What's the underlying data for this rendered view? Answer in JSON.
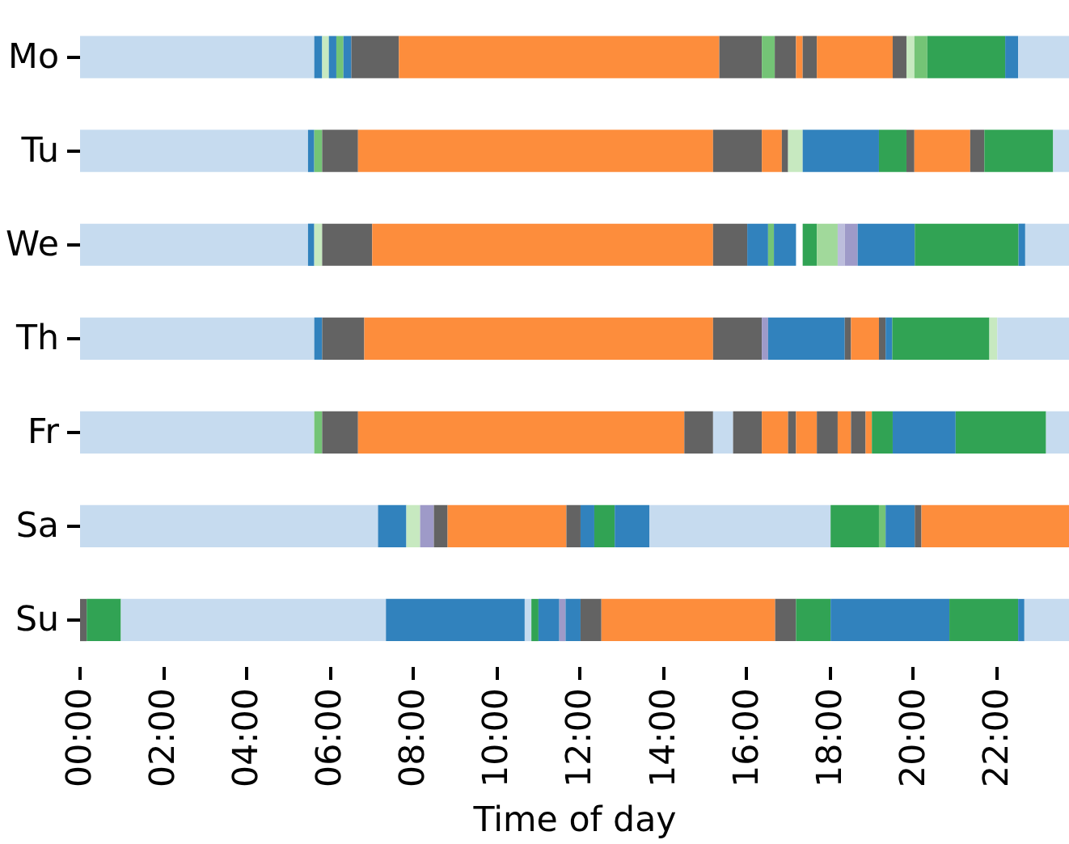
{
  "chart_data": {
    "type": "bar",
    "orientation": "horizontal",
    "xlabel": "Time of day",
    "categories": [
      "Mo",
      "Tu",
      "We",
      "Th",
      "Fr",
      "Sa",
      "Su"
    ],
    "xlim": [
      0,
      23.75
    ],
    "xticks": [
      {
        "value": 0,
        "label": "00:00"
      },
      {
        "value": 2,
        "label": "02:00"
      },
      {
        "value": 4,
        "label": "04:00"
      },
      {
        "value": 6,
        "label": "06:00"
      },
      {
        "value": 8,
        "label": "08:00"
      },
      {
        "value": 10,
        "label": "10:00"
      },
      {
        "value": 12,
        "label": "12:00"
      },
      {
        "value": 14,
        "label": "14:00"
      },
      {
        "value": 16,
        "label": "16:00"
      },
      {
        "value": 18,
        "label": "18:00"
      },
      {
        "value": 20,
        "label": "20:00"
      },
      {
        "value": 22,
        "label": "22:00"
      }
    ],
    "grid": false,
    "series": [
      {
        "base": [
          0,
          0,
          0,
          0,
          0,
          0,
          0
        ],
        "values": [
          5.62,
          5.47,
          5.47,
          5.62,
          5.62,
          7.15,
          0.16
        ],
        "colors": [
          "#c6dbef",
          "#c6dbef",
          "#c6dbef",
          "#c6dbef",
          "#c6dbef",
          "#c6dbef",
          "#636363"
        ]
      },
      {
        "base": [
          5.62,
          5.47,
          5.47,
          5.62,
          5.62,
          7.15,
          0.16
        ],
        "values": [
          0.19,
          0.15,
          0.15,
          0.19,
          0.19,
          0.68,
          0.82
        ],
        "colors": [
          "#3182bd",
          "#3182bd",
          "#3182bd",
          "#3182bd",
          "#74c476",
          "#3182bd",
          "#31a354"
        ]
      },
      {
        "base": [
          5.81,
          5.62,
          5.62,
          5.81,
          5.81,
          7.83,
          0.98
        ],
        "values": [
          0.16,
          0.19,
          0.19,
          1.01,
          0.86,
          0.33,
          6.36
        ],
        "colors": [
          "#c7e9c0",
          "#74c476",
          "#c7e9c0",
          "#636363",
          "#636363",
          "#c7e9c0",
          "#c6dbef"
        ]
      },
      {
        "base": [
          5.97,
          5.81,
          5.81,
          6.82,
          6.67,
          8.16,
          7.34
        ],
        "values": [
          0.18,
          0.86,
          1.2,
          8.37,
          7.83,
          0.33,
          3.33
        ],
        "colors": [
          "#3182bd",
          "#636363",
          "#636363",
          "#fd8d3c",
          "#fd8d3c",
          "#9e9ac8",
          "#3182bd"
        ]
      },
      {
        "base": [
          6.15,
          6.67,
          7.01,
          15.19,
          14.5,
          8.49,
          10.67
        ],
        "values": [
          0.17,
          8.52,
          8.18,
          1.17,
          0.69,
          0.33,
          0.16
        ],
        "colors": [
          "#74c476",
          "#fd8d3c",
          "#fd8d3c",
          "#636363",
          "#636363",
          "#636363",
          "#c6dbef"
        ]
      },
      {
        "base": [
          6.32,
          15.19,
          15.19,
          16.36,
          15.19,
          8.82,
          10.83
        ],
        "values": [
          0.19,
          1.17,
          0.82,
          0.15,
          0.48,
          2.85,
          0.17
        ],
        "colors": [
          "#3182bd",
          "#636363",
          "#636363",
          "#9e9ac8",
          "#c6dbef",
          "#fd8d3c",
          "#31a354"
        ]
      },
      {
        "base": [
          6.51,
          16.36,
          16.01,
          16.51,
          15.67,
          11.67,
          11.0
        ],
        "values": [
          1.14,
          0.48,
          0.5,
          1.84,
          0.69,
          0.34,
          0.5
        ],
        "colors": [
          "#636363",
          "#fd8d3c",
          "#3182bd",
          "#3182bd",
          "#636363",
          "#636363",
          "#3182bd"
        ]
      },
      {
        "base": [
          7.65,
          16.84,
          16.51,
          18.35,
          16.36,
          12.01,
          11.5
        ],
        "values": [
          7.69,
          0.15,
          0.14,
          0.15,
          0.63,
          0.33,
          0.15
        ],
        "colors": [
          "#fd8d3c",
          "#636363",
          "#74c476",
          "#636363",
          "#fd8d3c",
          "#3182bd",
          "#9e9ac8"
        ]
      },
      {
        "base": [
          15.34,
          16.99,
          16.65,
          18.5,
          16.99,
          12.34,
          11.65
        ],
        "values": [
          1.02,
          0.35,
          0.53,
          0.67,
          0.19,
          0.49,
          0.36
        ],
        "colors": [
          "#636363",
          "#c7e9c0",
          "#3182bd",
          "#fd8d3c",
          "#636363",
          "#31a354",
          "#3182bd"
        ]
      },
      {
        "base": [
          16.36,
          17.34,
          17.34,
          19.17,
          17.18,
          12.83,
          12.01
        ],
        "values": [
          0.31,
          1.83,
          0.34,
          0.16,
          0.5,
          0.83,
          0.5
        ],
        "colors": [
          "#74c476",
          "#3182bd",
          "#31a354",
          "#636363",
          "#fd8d3c",
          "#3182bd",
          "#636363"
        ]
      },
      {
        "base": [
          16.67,
          19.17,
          17.68,
          19.33,
          17.68,
          13.66,
          12.51
        ],
        "values": [
          0.51,
          0.66,
          0.5,
          0.16,
          0.5,
          4.35,
          4.17
        ],
        "colors": [
          "#636363",
          "#31a354",
          "#a1d99b",
          "#3182bd",
          "#636363",
          "#c6dbef",
          "#fd8d3c"
        ]
      },
      {
        "base": [
          17.18,
          19.83,
          18.18,
          19.49,
          18.18,
          18.01,
          16.68
        ],
        "values": [
          0.16,
          0.19,
          0.17,
          2.33,
          0.32,
          1.16,
          0.5
        ],
        "colors": [
          "#fd8d3c",
          "#636363",
          "#bcbddc",
          "#31a354",
          "#fd8d3c",
          "#31a354",
          "#636363"
        ]
      },
      {
        "base": [
          17.34,
          20.02,
          18.35,
          21.82,
          18.5,
          19.17,
          17.18
        ],
        "values": [
          0.34,
          1.34,
          0.31,
          0.19,
          0.35,
          0.16,
          0.83
        ],
        "colors": [
          "#636363",
          "#fd8d3c",
          "#9e9ac8",
          "#c7e9c0",
          "#636363",
          "#74c476",
          "#31a354"
        ]
      },
      {
        "base": [
          17.68,
          21.36,
          18.66,
          22.01,
          18.85,
          19.33,
          18.01
        ],
        "values": [
          1.82,
          0.34,
          1.37,
          1.74,
          0.15,
          0.7,
          2.85
        ],
        "colors": [
          "#fd8d3c",
          "#636363",
          "#3182bd",
          "#c6dbef",
          "#fd8d3c",
          "#3182bd",
          "#3182bd"
        ]
      },
      {
        "base": [
          19.5,
          21.7,
          20.03,
          null,
          19.0,
          20.03,
          20.86
        ],
        "values": [
          0.33,
          1.65,
          2.49,
          null,
          0.5,
          0.16,
          1.65
        ],
        "colors": [
          "#636363",
          "#31a354",
          "#31a354",
          null,
          "#31a354",
          "#636363",
          "#31a354"
        ]
      },
      {
        "base": [
          19.83,
          23.35,
          22.52,
          null,
          19.5,
          20.19,
          22.51
        ],
        "values": [
          0.19,
          0.4,
          0.16,
          null,
          1.51,
          3.56,
          0.15
        ],
        "colors": [
          "#c7e9c0",
          "#c6dbef",
          "#3182bd",
          null,
          "#3182bd",
          "#fd8d3c",
          "#3182bd"
        ]
      },
      {
        "base": [
          20.02,
          null,
          22.68,
          null,
          21.01,
          null,
          22.66
        ],
        "values": [
          0.31,
          null,
          1.07,
          null,
          2.17,
          null,
          1.09
        ],
        "colors": [
          "#74c476",
          null,
          "#c6dbef",
          null,
          "#31a354",
          null,
          "#c6dbef"
        ]
      },
      {
        "base": [
          20.33,
          null,
          null,
          null,
          23.18,
          null,
          null
        ],
        "values": [
          1.87,
          null,
          null,
          null,
          0.57,
          null,
          null
        ],
        "colors": [
          "#31a354",
          null,
          null,
          null,
          "#c6dbef",
          null,
          null
        ]
      },
      {
        "base": [
          22.2,
          null,
          null,
          null,
          null,
          null,
          null
        ],
        "values": [
          0.31,
          null,
          null,
          null,
          null,
          null,
          null
        ],
        "colors": [
          "#3182bd",
          null,
          null,
          null,
          null,
          null,
          null
        ]
      },
      {
        "base": [
          22.51,
          null,
          null,
          null,
          null,
          null,
          null
        ],
        "values": [
          1.24,
          null,
          null,
          null,
          null,
          null,
          null
        ],
        "colors": [
          "#c6dbef",
          null,
          null,
          null,
          null,
          null,
          null
        ]
      }
    ]
  }
}
